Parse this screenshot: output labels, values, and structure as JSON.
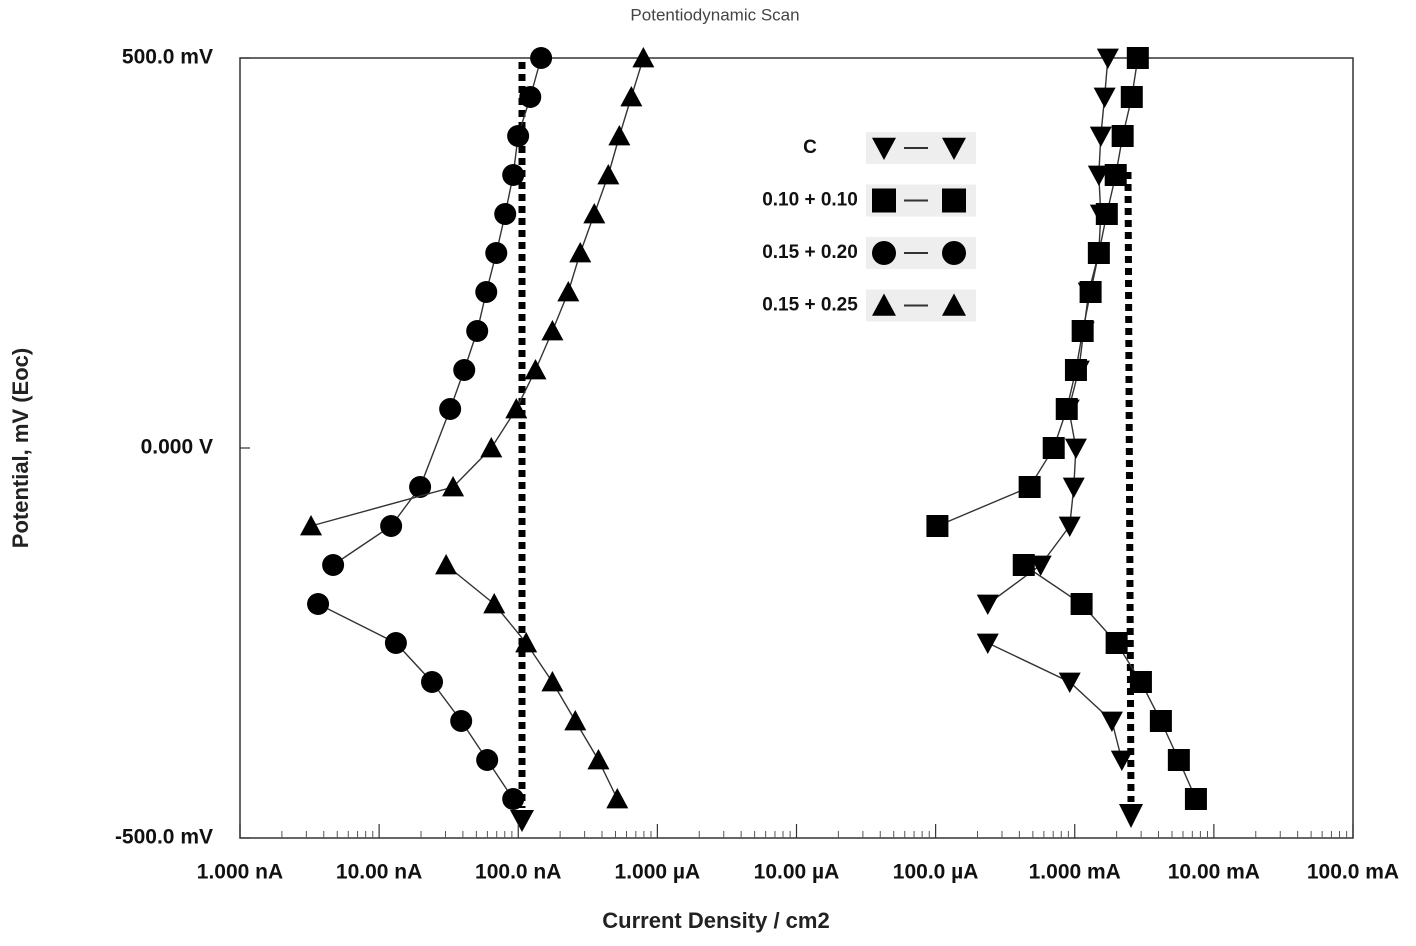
{
  "chart_data": {
    "type": "scatter",
    "title": "Potentiodynamic Scan",
    "x_label": "Current Density / cm2",
    "y_label": "Potential, mV (Eoc)",
    "x_scale": "log",
    "xlim": [
      1e-09,
      0.1
    ],
    "xticks": [
      {
        "value": 1e-09,
        "label": "1.000 nA"
      },
      {
        "value": 1e-08,
        "label": "10.00 nA"
      },
      {
        "value": 1e-07,
        "label": "100.0 nA"
      },
      {
        "value": 1e-06,
        "label": "1.000 µA"
      },
      {
        "value": 1e-05,
        "label": "10.00 µA"
      },
      {
        "value": 0.0001,
        "label": "100.0 µA"
      },
      {
        "value": 0.001,
        "label": "1.000 mA"
      },
      {
        "value": 0.01,
        "label": "10.00 mA"
      },
      {
        "value": 0.1,
        "label": "100.0 mA"
      }
    ],
    "ylim": [
      -500,
      500
    ],
    "yticks": [
      {
        "value": 500,
        "label": "500.0 mV"
      },
      {
        "value": 0,
        "label": "0.000 V"
      },
      {
        "value": -500,
        "label": "-500.0 mV"
      }
    ],
    "grid": false,
    "legend": "upper center",
    "series": [
      {
        "name": "C",
        "marker": "triangle-down",
        "color": "#000000",
        "x": [
          0.00218,
          0.00185,
          0.00092,
          0.000237,
          null,
          0.000237,
          0.000569,
          0.00092,
          0.000984,
          0.00102,
          0.000906,
          0.00107,
          0.00116,
          0.00126,
          0.00149,
          0.00154,
          0.00149,
          0.00154,
          0.00164,
          0.00173
        ],
        "values": [
          -400,
          -350,
          -300,
          -250,
          null,
          -200,
          -150,
          -100,
          -50,
          0,
          50,
          100,
          150,
          200,
          250,
          300,
          350,
          400,
          450,
          500
        ]
      },
      {
        "name": "0.10 + 0.10",
        "marker": "square",
        "color": "#000000",
        "x": [
          0.00743,
          0.0056,
          0.00416,
          0.00299,
          0.002,
          0.00112,
          0.00043,
          null,
          0.000103,
          0.000474,
          0.000706,
          0.000876,
          0.00102,
          0.00114,
          0.0013,
          0.00149,
          0.0017,
          0.00197,
          0.00221,
          0.00257,
          0.00284
        ],
        "values": [
          -450,
          -400,
          -350,
          -300,
          -250,
          -200,
          -150,
          null,
          -100,
          -50,
          0,
          50,
          100,
          150,
          200,
          250,
          300,
          350,
          400,
          450,
          500
        ]
      },
      {
        "name": "0.15 + 0.20",
        "marker": "circle",
        "color": "#000000",
        "x": [
          9.2e-08,
          5.98e-08,
          3.89e-08,
          2.4e-08,
          1.32e-08,
          3.64e-09,
          null,
          4.67e-09,
          1.22e-08,
          1.97e-08,
          3.24e-08,
          4.09e-08,
          5.07e-08,
          5.89e-08,
          6.95e-08,
          8.06e-08,
          9.2e-08,
          9.98e-08,
          1.22e-07,
          1.46e-07
        ],
        "values": [
          -450,
          -400,
          -350,
          -300,
          -250,
          -200,
          null,
          -150,
          -100,
          -50,
          50,
          100,
          150,
          200,
          250,
          300,
          350,
          400,
          450,
          500
        ]
      },
      {
        "name": "0.15 + 0.25",
        "marker": "triangle-up",
        "color": "#000000",
        "x": [
          5.15e-07,
          3.77e-07,
          2.57e-07,
          1.76e-07,
          1.14e-07,
          6.72e-08,
          3.03e-08,
          null,
          3.24e-09,
          3.4e-08,
          6.4e-08,
          9.68e-08,
          1.33e-07,
          1.76e-07,
          2.29e-07,
          2.79e-07,
          3.52e-07,
          4.44e-07,
          5.33e-07,
          6.5e-07,
          7.93e-07
        ],
        "values": [
          -450,
          -400,
          -350,
          -300,
          -250,
          -200,
          -150,
          null,
          -100,
          -50,
          0,
          50,
          100,
          150,
          200,
          250,
          300,
          350,
          400,
          450,
          500
        ]
      }
    ]
  }
}
